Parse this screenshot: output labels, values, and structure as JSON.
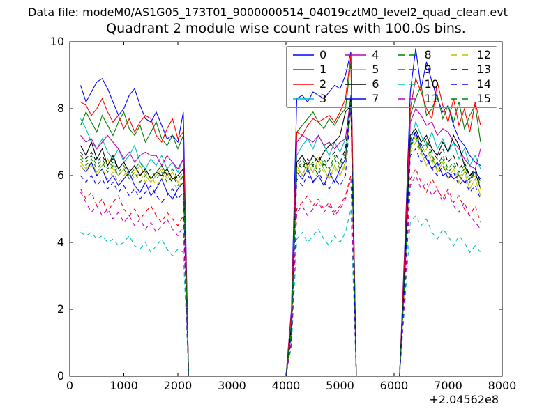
{
  "header": {
    "datafile": "Data file: modeM0/AS1G05_173T01_9000000514_04019cztM0_level2_quad_clean.evt"
  },
  "chart_data": {
    "type": "line",
    "title": "Quadrant 2 module wise count rates with 100.0s bins.",
    "xlabel": "",
    "ylabel": "",
    "xlim": [
      0,
      8000
    ],
    "ylim": [
      0,
      10
    ],
    "x_ticks": [
      0,
      1000,
      2000,
      3000,
      4000,
      5000,
      6000,
      7000,
      8000
    ],
    "y_ticks": [
      0,
      2,
      4,
      6,
      8,
      10
    ],
    "x_offset_label": "+2.04562e8",
    "bin_seconds": 100.0,
    "grid": false,
    "legend_position": "upper right",
    "legend_columns": 4,
    "x_start": 200,
    "x_step": 100,
    "segments": {
      "on1": [
        200,
        2100
      ],
      "gap1": [
        2200,
        4000
      ],
      "on2": [
        4100,
        5300
      ],
      "gap2": [
        5400,
        6100
      ],
      "on3": [
        6200,
        7600
      ]
    },
    "series": [
      {
        "label": "0",
        "color": "#0000ff",
        "dashed": false,
        "y_on1": [
          8.7,
          8.2,
          8.5,
          8.8,
          8.9,
          8.6,
          8.2,
          7.8,
          8.0,
          8.4,
          8.6,
          8.1,
          7.7,
          7.6,
          7.9,
          7.5,
          7.1,
          7.2,
          7.0,
          7.9
        ],
        "y_on2": [
          2.0,
          8.3,
          8.4,
          8.2,
          8.5,
          8.4,
          8.3,
          8.5,
          8.7,
          8.6,
          9.0,
          9.7,
          0.0
        ],
        "y_on3": [
          4.0,
          8.5,
          9.8,
          8.6,
          9.4,
          8.8,
          8.3,
          7.9,
          8.1,
          7.5,
          7.1,
          6.9,
          6.6,
          6.4,
          6.3
        ]
      },
      {
        "label": "1",
        "color": "#007f00",
        "dashed": false,
        "y_on1": [
          7.5,
          7.9,
          7.6,
          7.3,
          7.8,
          7.5,
          7.2,
          7.6,
          7.9,
          7.4,
          7.2,
          7.5,
          7.0,
          7.3,
          7.6,
          7.1,
          6.9,
          7.2,
          6.8,
          7.2
        ],
        "y_on2": [
          1.8,
          7.3,
          7.5,
          7.7,
          7.9,
          7.6,
          7.4,
          7.7,
          7.5,
          7.8,
          8.0,
          9.4,
          0.0
        ],
        "y_on3": [
          3.5,
          7.8,
          8.3,
          8.7,
          7.8,
          8.0,
          8.4,
          7.7,
          8.1,
          7.6,
          8.2,
          7.4,
          7.8,
          8.1,
          7.0
        ]
      },
      {
        "label": "2",
        "color": "#ff0000",
        "dashed": false,
        "y_on1": [
          8.2,
          8.1,
          7.8,
          8.0,
          8.3,
          7.9,
          7.6,
          7.8,
          7.4,
          7.7,
          7.3,
          7.6,
          7.8,
          7.7,
          7.2,
          7.0,
          7.4,
          7.7,
          7.1,
          7.3
        ],
        "y_on2": [
          1.9,
          7.3,
          7.2,
          7.5,
          7.7,
          7.6,
          7.7,
          7.8,
          7.6,
          7.9,
          8.3,
          9.6,
          0.0
        ],
        "y_on3": [
          3.8,
          8.0,
          8.9,
          8.5,
          8.0,
          7.7,
          8.8,
          8.1,
          7.6,
          8.3,
          7.5,
          8.0,
          7.3,
          8.2,
          7.5
        ]
      },
      {
        "label": "3",
        "color": "#00bfbf",
        "dashed": false,
        "y_on1": [
          7.7,
          7.4,
          7.0,
          6.8,
          7.1,
          6.7,
          6.5,
          6.8,
          6.4,
          6.6,
          6.9,
          6.4,
          6.2,
          6.5,
          6.3,
          6.6,
          6.2,
          6.4,
          6.1,
          6.5
        ],
        "y_on2": [
          1.6,
          6.6,
          6.9,
          7.1,
          6.8,
          7.2,
          6.9,
          6.6,
          7.0,
          6.7,
          7.1,
          8.3,
          0.0
        ],
        "y_on3": [
          3.2,
          7.0,
          7.6,
          7.2,
          6.9,
          7.3,
          6.8,
          7.1,
          6.7,
          7.0,
          6.5,
          6.8,
          6.3,
          6.6,
          6.2
        ]
      },
      {
        "label": "4",
        "color": "#bf00bf",
        "dashed": false,
        "y_on1": [
          7.2,
          7.0,
          7.1,
          6.8,
          7.0,
          7.2,
          7.0,
          6.8,
          6.5,
          6.7,
          6.4,
          6.6,
          6.7,
          6.6,
          6.6,
          6.3,
          6.6,
          6.4,
          6.2,
          6.5
        ],
        "y_on2": [
          1.5,
          7.0,
          7.2,
          7.1,
          7.0,
          7.2,
          6.9,
          7.0,
          6.8,
          7.0,
          7.1,
          8.4,
          0.0
        ],
        "y_on3": [
          3.4,
          7.6,
          8.0,
          7.8,
          7.5,
          7.6,
          7.2,
          7.4,
          7.3,
          7.0,
          6.8,
          6.5,
          6.3,
          6.2,
          6.8
        ]
      },
      {
        "label": "5",
        "color": "#bfbf00",
        "dashed": false,
        "y_on1": [
          6.4,
          6.2,
          6.4,
          6.1,
          6.3,
          6.5,
          6.2,
          6.0,
          6.2,
          5.9,
          6.1,
          6.3,
          6.0,
          5.8,
          6.0,
          6.2,
          5.9,
          6.1,
          5.8,
          6.0
        ],
        "y_on2": [
          1.4,
          6.3,
          6.0,
          6.4,
          6.1,
          6.5,
          6.2,
          5.9,
          6.3,
          6.0,
          6.4,
          8.2,
          0.0
        ],
        "y_on3": [
          3.0,
          6.8,
          7.2,
          6.7,
          6.3,
          6.6,
          6.1,
          6.4,
          5.9,
          6.2,
          5.8,
          6.1,
          5.6,
          5.9,
          5.4
        ]
      },
      {
        "label": "6",
        "color": "#000000",
        "dashed": false,
        "y_on1": [
          6.9,
          6.6,
          7.0,
          6.5,
          6.8,
          6.3,
          6.6,
          6.2,
          6.4,
          6.1,
          6.3,
          6.0,
          6.2,
          5.9,
          6.1,
          6.0,
          6.2,
          5.9,
          6.0,
          6.2
        ],
        "y_on2": [
          1.5,
          6.4,
          6.6,
          6.3,
          6.6,
          6.4,
          6.7,
          6.9,
          7.0,
          7.2,
          7.9,
          8.1,
          0.0
        ],
        "y_on3": [
          3.3,
          7.2,
          7.4,
          7.0,
          7.2,
          6.8,
          6.6,
          7.0,
          6.7,
          7.2,
          6.9,
          6.3,
          6.0,
          6.1,
          5.6
        ]
      },
      {
        "label": "7",
        "color": "#0000ff",
        "dashed": false,
        "y_on1": [
          6.3,
          6.1,
          6.4,
          6.0,
          6.2,
          5.8,
          6.0,
          5.7,
          5.9,
          6.1,
          5.7,
          5.5,
          5.8,
          5.4,
          5.6,
          5.9,
          5.5,
          5.3,
          5.6,
          5.8
        ],
        "y_on2": [
          1.3,
          6.1,
          5.9,
          6.2,
          5.8,
          6.0,
          5.7,
          6.1,
          5.8,
          6.2,
          6.5,
          8.3,
          0.0
        ],
        "y_on3": [
          3.1,
          6.9,
          7.3,
          6.8,
          6.5,
          6.2,
          6.4,
          6.0,
          6.1,
          5.9,
          6.0,
          5.8,
          5.9,
          6.1,
          5.9
        ]
      },
      {
        "label": "8",
        "color": "#007f00",
        "dashed": true,
        "y_on1": [
          6.6,
          6.4,
          6.6,
          6.3,
          6.5,
          6.2,
          6.4,
          6.1,
          6.3,
          6.0,
          6.2,
          6.4,
          6.1,
          5.9,
          6.1,
          6.3,
          6.0,
          6.2,
          5.9,
          6.1
        ],
        "y_on2": [
          1.4,
          6.3,
          6.5,
          6.2,
          6.4,
          6.1,
          6.5,
          6.2,
          6.6,
          6.3,
          6.7,
          8.4,
          0.0
        ],
        "y_on3": [
          3.2,
          7.0,
          7.2,
          6.8,
          7.0,
          6.6,
          6.3,
          6.6,
          6.2,
          6.4,
          6.1,
          6.3,
          5.9,
          6.2,
          5.8
        ]
      },
      {
        "label": "9",
        "color": "#ff0000",
        "dashed": true,
        "y_on1": [
          5.6,
          5.3,
          5.5,
          5.1,
          5.3,
          4.9,
          5.2,
          5.4,
          5.0,
          4.8,
          5.0,
          4.7,
          4.9,
          5.1,
          4.8,
          4.6,
          4.9,
          4.7,
          4.5,
          4.8
        ],
        "y_on2": [
          1.1,
          5.0,
          5.2,
          5.4,
          5.1,
          5.3,
          5.0,
          5.2,
          4.9,
          5.1,
          5.4,
          6.0,
          0.0
        ],
        "y_on3": [
          2.6,
          5.9,
          6.2,
          5.8,
          5.5,
          5.9,
          5.6,
          5.3,
          5.6,
          5.2,
          5.4,
          5.0,
          4.8,
          5.1,
          4.6
        ]
      },
      {
        "label": "10",
        "color": "#00bfbf",
        "dashed": true,
        "y_on1": [
          4.3,
          4.2,
          4.3,
          4.1,
          4.2,
          4.0,
          4.1,
          3.9,
          4.0,
          4.2,
          3.9,
          3.8,
          4.0,
          3.7,
          3.9,
          4.1,
          3.8,
          3.6,
          3.8,
          3.7
        ],
        "y_on2": [
          0.9,
          4.1,
          4.3,
          4.0,
          4.2,
          4.4,
          4.1,
          3.9,
          4.2,
          4.0,
          4.3,
          5.0,
          0.0
        ],
        "y_on3": [
          2.2,
          4.6,
          4.8,
          4.5,
          4.7,
          4.3,
          4.1,
          4.4,
          4.2,
          3.9,
          4.2,
          4.0,
          3.7,
          3.9,
          3.7
        ]
      },
      {
        "label": "11",
        "color": "#bf00bf",
        "dashed": true,
        "y_on1": [
          5.5,
          5.2,
          4.9,
          5.1,
          4.8,
          5.0,
          4.7,
          4.9,
          4.6,
          4.8,
          4.5,
          4.7,
          4.4,
          4.6,
          4.3,
          4.5,
          4.7,
          4.4,
          4.2,
          4.5
        ],
        "y_on2": [
          1.0,
          4.9,
          5.1,
          4.8,
          5.0,
          5.2,
          4.9,
          5.1,
          4.8,
          5.0,
          5.3,
          5.9,
          0.0
        ],
        "y_on3": [
          2.4,
          5.7,
          6.0,
          5.6,
          5.8,
          5.4,
          5.6,
          5.2,
          5.5,
          5.1,
          4.9,
          5.2,
          4.8,
          4.6,
          4.4
        ]
      },
      {
        "label": "12",
        "color": "#bfbf00",
        "dashed": true,
        "y_on1": [
          6.3,
          6.1,
          6.3,
          6.0,
          6.2,
          5.9,
          6.1,
          5.8,
          6.0,
          6.2,
          5.9,
          6.1,
          5.8,
          6.0,
          5.7,
          5.9,
          6.1,
          5.8,
          5.6,
          5.9
        ],
        "y_on2": [
          1.3,
          6.2,
          6.0,
          6.3,
          6.1,
          6.4,
          6.1,
          5.9,
          6.2,
          6.0,
          6.3,
          8.0,
          0.0
        ],
        "y_on3": [
          3.0,
          6.7,
          7.0,
          6.6,
          6.8,
          6.4,
          6.2,
          6.5,
          6.1,
          6.3,
          5.9,
          6.2,
          5.8,
          6.0,
          5.6
        ]
      },
      {
        "label": "13",
        "color": "#000000",
        "dashed": true,
        "y_on1": [
          6.7,
          6.5,
          6.7,
          6.4,
          6.6,
          6.3,
          6.5,
          6.2,
          6.4,
          6.1,
          6.3,
          6.0,
          6.2,
          5.9,
          6.1,
          6.3,
          6.0,
          5.8,
          6.0,
          6.2
        ],
        "y_on2": [
          1.4,
          6.4,
          6.2,
          6.5,
          6.3,
          6.6,
          6.3,
          6.5,
          6.7,
          6.4,
          6.8,
          8.3,
          0.0
        ],
        "y_on3": [
          3.1,
          7.1,
          7.3,
          6.9,
          7.1,
          6.7,
          6.5,
          6.8,
          6.4,
          6.6,
          6.2,
          6.4,
          6.0,
          6.2,
          5.8
        ]
      },
      {
        "label": "14",
        "color": "#0000ff",
        "dashed": true,
        "y_on1": [
          6.0,
          5.8,
          6.0,
          5.7,
          5.9,
          5.6,
          5.8,
          5.5,
          5.7,
          5.4,
          5.6,
          5.3,
          5.5,
          5.7,
          5.4,
          5.2,
          5.4,
          5.6,
          5.3,
          5.5
        ],
        "y_on2": [
          1.2,
          5.9,
          5.7,
          6.0,
          5.8,
          6.1,
          5.8,
          5.6,
          5.9,
          5.7,
          6.0,
          8.1,
          0.0
        ],
        "y_on3": [
          2.9,
          6.6,
          6.8,
          6.4,
          6.6,
          6.2,
          6.0,
          6.3,
          5.9,
          6.1,
          5.7,
          5.9,
          5.5,
          5.7,
          5.3
        ]
      },
      {
        "label": "15",
        "color": "#007f00",
        "dashed": true,
        "y_on1": [
          6.5,
          6.3,
          6.5,
          6.2,
          6.4,
          6.1,
          6.3,
          6.0,
          6.2,
          5.9,
          6.1,
          5.8,
          6.0,
          6.2,
          5.9,
          6.1,
          5.8,
          6.0,
          5.7,
          6.0
        ],
        "y_on2": [
          1.3,
          6.2,
          6.4,
          6.1,
          6.3,
          6.0,
          6.4,
          6.1,
          6.5,
          6.2,
          6.6,
          8.2,
          0.0
        ],
        "y_on3": [
          3.0,
          6.9,
          7.1,
          6.7,
          6.9,
          6.5,
          6.2,
          6.5,
          6.1,
          6.3,
          6.0,
          6.2,
          5.8,
          6.1,
          5.7
        ]
      }
    ]
  }
}
